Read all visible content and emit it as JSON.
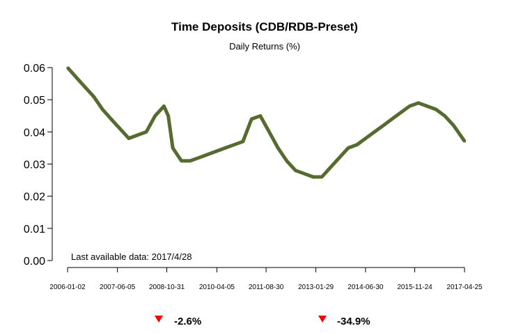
{
  "chart_data": {
    "type": "line",
    "title": "Time Deposits (CDB/RDB-Preset)",
    "subtitle": "Daily Returns (%)",
    "xlabel": "",
    "ylabel": "",
    "ylim": [
      0.0,
      0.06
    ],
    "y_ticks": [
      "0.00",
      "0.01",
      "0.02",
      "0.03",
      "0.04",
      "0.05",
      "0.06"
    ],
    "x_ticks": [
      "2006-01-02",
      "2007-06-05",
      "2008-10-31",
      "2010-04-05",
      "2011-08-30",
      "2013-01-29",
      "2014-06-30",
      "2015-11-24",
      "2017-04-25"
    ],
    "grid": false,
    "series": [
      {
        "color": "#556b2f",
        "x": [
          "2006-01-02",
          "2006-04-01",
          "2006-07-01",
          "2006-10-01",
          "2007-01-01",
          "2007-04-01",
          "2007-07-01",
          "2007-10-01",
          "2008-01-01",
          "2008-04-01",
          "2008-07-01",
          "2008-10-01",
          "2008-11-15",
          "2009-01-01",
          "2009-04-01",
          "2009-07-01",
          "2009-10-01",
          "2010-01-01",
          "2010-04-01",
          "2010-07-01",
          "2010-10-01",
          "2011-01-01",
          "2011-04-01",
          "2011-07-01",
          "2011-10-01",
          "2012-01-01",
          "2012-04-01",
          "2012-07-01",
          "2012-10-01",
          "2013-01-01",
          "2013-04-01",
          "2013-07-01",
          "2013-10-01",
          "2014-01-01",
          "2014-04-01",
          "2014-07-01",
          "2014-10-01",
          "2015-01-01",
          "2015-04-01",
          "2015-07-01",
          "2015-10-01",
          "2016-01-01",
          "2016-04-01",
          "2016-07-01",
          "2016-10-01",
          "2017-01-01",
          "2017-04-28"
        ],
        "y": [
          0.06,
          0.057,
          0.054,
          0.051,
          0.047,
          0.044,
          0.041,
          0.038,
          0.039,
          0.04,
          0.045,
          0.048,
          0.045,
          0.035,
          0.031,
          0.031,
          0.032,
          0.033,
          0.034,
          0.035,
          0.036,
          0.037,
          0.044,
          0.045,
          0.04,
          0.035,
          0.031,
          0.028,
          0.027,
          0.026,
          0.026,
          0.029,
          0.032,
          0.035,
          0.036,
          0.038,
          0.04,
          0.042,
          0.044,
          0.046,
          0.048,
          0.049,
          0.048,
          0.047,
          0.045,
          0.042,
          0.037
        ]
      }
    ],
    "annotations": {
      "last_data": "Last available data: 2017/4/28"
    },
    "stats": [
      {
        "value": "-2.6%",
        "direction": "down",
        "color": "#ff0000"
      },
      {
        "value": "-34.9%",
        "direction": "down",
        "color": "#ff0000"
      }
    ]
  }
}
